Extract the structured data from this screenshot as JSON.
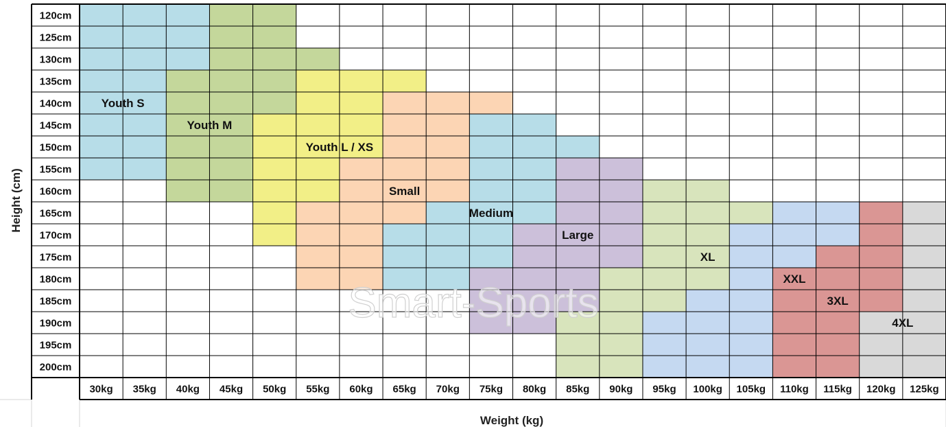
{
  "chart_data": {
    "type": "heatmap",
    "heights": [
      "120cm",
      "125cm",
      "130cm",
      "135cm",
      "140cm",
      "145cm",
      "150cm",
      "155cm",
      "160cm",
      "165cm",
      "170cm",
      "175cm",
      "180cm",
      "185cm",
      "190cm",
      "195cm",
      "200cm"
    ],
    "weights": [
      "30kg",
      "35kg",
      "40kg",
      "45kg",
      "50kg",
      "55kg",
      "60kg",
      "65kg",
      "70kg",
      "75kg",
      "80kg",
      "85kg",
      "90kg",
      "95kg",
      "100kg",
      "105kg",
      "110kg",
      "115kg",
      "120kg",
      "125kg"
    ],
    "xlabel": "Weight (kg)",
    "ylabel": "Height (cm)",
    "watermark": "Smart-Sports",
    "sizes": [
      {
        "name": "Youth S",
        "color": "#b7dde8"
      },
      {
        "name": "Youth M",
        "color": "#c4d79b"
      },
      {
        "name": "Youth L / XS",
        "color": "#f2ef87"
      },
      {
        "name": "Small",
        "color": "#fcd5b4"
      },
      {
        "name": "Medium",
        "color": "#b7dde8"
      },
      {
        "name": "Large",
        "color": "#ccc0da"
      },
      {
        "name": "XL",
        "color": "#d8e4bc"
      },
      {
        "name": "XXL",
        "color": "#c5d9f1"
      },
      {
        "name": "3XL",
        "color": "#da9694"
      },
      {
        "name": "4XL",
        "color": "#d9d9d9"
      }
    ],
    "grid": [
      [
        0,
        0,
        0,
        1,
        1,
        -1,
        -1,
        -1,
        -1,
        -1,
        -1,
        -1,
        -1,
        -1,
        -1,
        -1,
        -1,
        -1,
        -1,
        -1
      ],
      [
        0,
        0,
        0,
        1,
        1,
        -1,
        -1,
        -1,
        -1,
        -1,
        -1,
        -1,
        -1,
        -1,
        -1,
        -1,
        -1,
        -1,
        -1,
        -1
      ],
      [
        0,
        0,
        0,
        1,
        1,
        1,
        -1,
        -1,
        -1,
        -1,
        -1,
        -1,
        -1,
        -1,
        -1,
        -1,
        -1,
        -1,
        -1,
        -1
      ],
      [
        0,
        0,
        1,
        1,
        1,
        2,
        2,
        2,
        -1,
        -1,
        -1,
        -1,
        -1,
        -1,
        -1,
        -1,
        -1,
        -1,
        -1,
        -1
      ],
      [
        0,
        0,
        1,
        1,
        1,
        2,
        2,
        3,
        3,
        3,
        -1,
        -1,
        -1,
        -1,
        -1,
        -1,
        -1,
        -1,
        -1,
        -1
      ],
      [
        0,
        0,
        1,
        1,
        2,
        2,
        2,
        3,
        3,
        4,
        4,
        -1,
        -1,
        -1,
        -1,
        -1,
        -1,
        -1,
        -1,
        -1
      ],
      [
        0,
        0,
        1,
        1,
        2,
        2,
        2,
        3,
        3,
        4,
        4,
        4,
        -1,
        -1,
        -1,
        -1,
        -1,
        -1,
        -1,
        -1
      ],
      [
        0,
        0,
        1,
        1,
        2,
        2,
        3,
        3,
        3,
        4,
        4,
        5,
        5,
        -1,
        -1,
        -1,
        -1,
        -1,
        -1,
        -1
      ],
      [
        -1,
        -1,
        1,
        1,
        2,
        2,
        3,
        3,
        3,
        4,
        4,
        5,
        5,
        6,
        6,
        -1,
        -1,
        -1,
        -1,
        -1
      ],
      [
        -1,
        -1,
        -1,
        -1,
        2,
        3,
        3,
        3,
        4,
        4,
        4,
        5,
        5,
        6,
        6,
        6,
        7,
        7,
        8,
        9
      ],
      [
        -1,
        -1,
        -1,
        -1,
        2,
        3,
        3,
        4,
        4,
        4,
        5,
        5,
        5,
        6,
        6,
        7,
        7,
        7,
        8,
        9
      ],
      [
        -1,
        -1,
        -1,
        -1,
        -1,
        3,
        3,
        4,
        4,
        4,
        5,
        5,
        5,
        6,
        6,
        7,
        7,
        8,
        8,
        9
      ],
      [
        -1,
        -1,
        -1,
        -1,
        -1,
        3,
        3,
        4,
        4,
        5,
        5,
        5,
        6,
        6,
        6,
        7,
        8,
        8,
        8,
        9
      ],
      [
        -1,
        -1,
        -1,
        -1,
        -1,
        -1,
        -1,
        -1,
        -1,
        5,
        5,
        5,
        6,
        6,
        7,
        7,
        8,
        8,
        8,
        9
      ],
      [
        -1,
        -1,
        -1,
        -1,
        -1,
        -1,
        -1,
        -1,
        -1,
        5,
        5,
        6,
        6,
        7,
        7,
        7,
        8,
        8,
        9,
        9
      ],
      [
        -1,
        -1,
        -1,
        -1,
        -1,
        -1,
        -1,
        -1,
        -1,
        -1,
        -1,
        6,
        6,
        7,
        7,
        7,
        8,
        8,
        9,
        9
      ],
      [
        -1,
        -1,
        -1,
        -1,
        -1,
        -1,
        -1,
        -1,
        -1,
        -1,
        -1,
        6,
        6,
        7,
        7,
        7,
        8,
        8,
        9,
        9
      ]
    ],
    "region_labels": [
      {
        "text": "Youth S",
        "row": 4,
        "col": 1
      },
      {
        "text": "Youth M",
        "row": 5,
        "col": 3
      },
      {
        "text": "Youth L / XS",
        "row": 6,
        "col": 6
      },
      {
        "text": "Small",
        "row": 8,
        "col": 7.5
      },
      {
        "text": "Medium",
        "row": 9,
        "col": 9.5
      },
      {
        "text": "Large",
        "row": 10,
        "col": 11.5
      },
      {
        "text": "XL",
        "row": 11,
        "col": 14.5
      },
      {
        "text": "XXL",
        "row": 12,
        "col": 16.5
      },
      {
        "text": "3XL",
        "row": 13,
        "col": 17.5
      },
      {
        "text": "4XL",
        "row": 14,
        "col": 19
      }
    ]
  }
}
